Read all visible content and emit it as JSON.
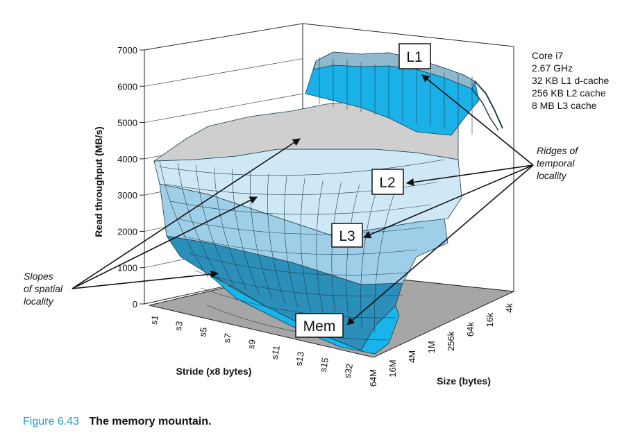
{
  "figure": {
    "number": "Figure 6.43",
    "title": "The memory mountain."
  },
  "chart_data": {
    "type": "surface",
    "title": "",
    "zlabel": "Read throughput (MB/s)",
    "xlabel": "Stride (x8 bytes)",
    "ylabel": "Size (bytes)",
    "zlim": [
      0,
      7000
    ],
    "z_ticks": [
      "0",
      "1000",
      "2000",
      "3000",
      "4000",
      "5000",
      "6000",
      "7000"
    ],
    "stride_ticks": [
      "s1",
      "s3",
      "s5",
      "s7",
      "s9",
      "s11",
      "s13",
      "s15",
      "s32"
    ],
    "size_ticks": [
      "64M",
      "16M",
      "4M",
      "1M",
      "256k",
      "64k",
      "16k",
      "4k"
    ],
    "processor_info": [
      "Core i7",
      "2.67 GHz",
      "32 KB L1 d-cache",
      "256 KB L2 cache",
      "8 MB L3 cache"
    ],
    "regions": [
      {
        "label": "L1",
        "throughput_range": [
          5000,
          6400
        ],
        "color": "#1ab0e8"
      },
      {
        "label": "L2",
        "throughput_range": [
          3200,
          4800
        ],
        "color": "#cfe8f6"
      },
      {
        "label": "L3",
        "throughput_range": [
          2200,
          3200
        ],
        "color": "#9fcfe8"
      },
      {
        "label": "Mem",
        "throughput_range": [
          400,
          1600
        ],
        "color": "#2b8fba"
      }
    ],
    "annotations": {
      "ridges": [
        "Ridges of",
        "temporal",
        "locality"
      ],
      "slopes": [
        "Slopes",
        "of spatial",
        "locality"
      ]
    }
  }
}
